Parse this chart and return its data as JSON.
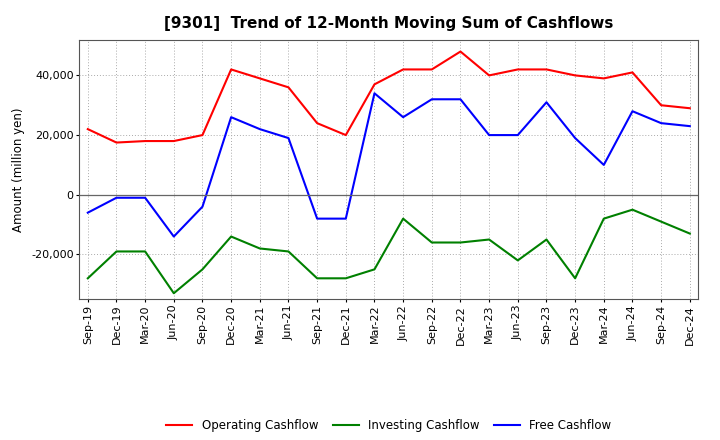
{
  "title": "[9301]  Trend of 12-Month Moving Sum of Cashflows",
  "ylabel": "Amount (million yen)",
  "x_labels": [
    "Sep-19",
    "Dec-19",
    "Mar-20",
    "Jun-20",
    "Sep-20",
    "Dec-20",
    "Mar-21",
    "Jun-21",
    "Sep-21",
    "Dec-21",
    "Mar-22",
    "Jun-22",
    "Sep-22",
    "Dec-22",
    "Mar-23",
    "Jun-23",
    "Sep-23",
    "Dec-23",
    "Mar-24",
    "Jun-24",
    "Sep-24",
    "Dec-24"
  ],
  "operating": [
    22000,
    17500,
    18000,
    18000,
    20000,
    42000,
    39000,
    36000,
    24000,
    20000,
    37000,
    42000,
    42000,
    48000,
    40000,
    42000,
    42000,
    40000,
    39000,
    41000,
    30000,
    29000
  ],
  "investing": [
    -28000,
    -19000,
    -19000,
    -33000,
    -25000,
    -14000,
    -18000,
    -19000,
    -28000,
    -28000,
    -25000,
    -8000,
    -16000,
    -16000,
    -15000,
    -22000,
    -15000,
    -28000,
    -8000,
    -5000,
    -9000,
    -13000
  ],
  "free": [
    -6000,
    -1000,
    -1000,
    -14000,
    -4000,
    26000,
    22000,
    19000,
    -8000,
    -8000,
    34000,
    26000,
    32000,
    32000,
    20000,
    20000,
    31000,
    19000,
    10000,
    28000,
    24000,
    23000
  ],
  "operating_color": "#ff0000",
  "investing_color": "#008000",
  "free_color": "#0000ff",
  "ylim": [
    -35000,
    52000
  ],
  "yticks": [
    -20000,
    0,
    20000,
    40000
  ],
  "background_color": "#ffffff",
  "grid_color": "#aaaaaa"
}
